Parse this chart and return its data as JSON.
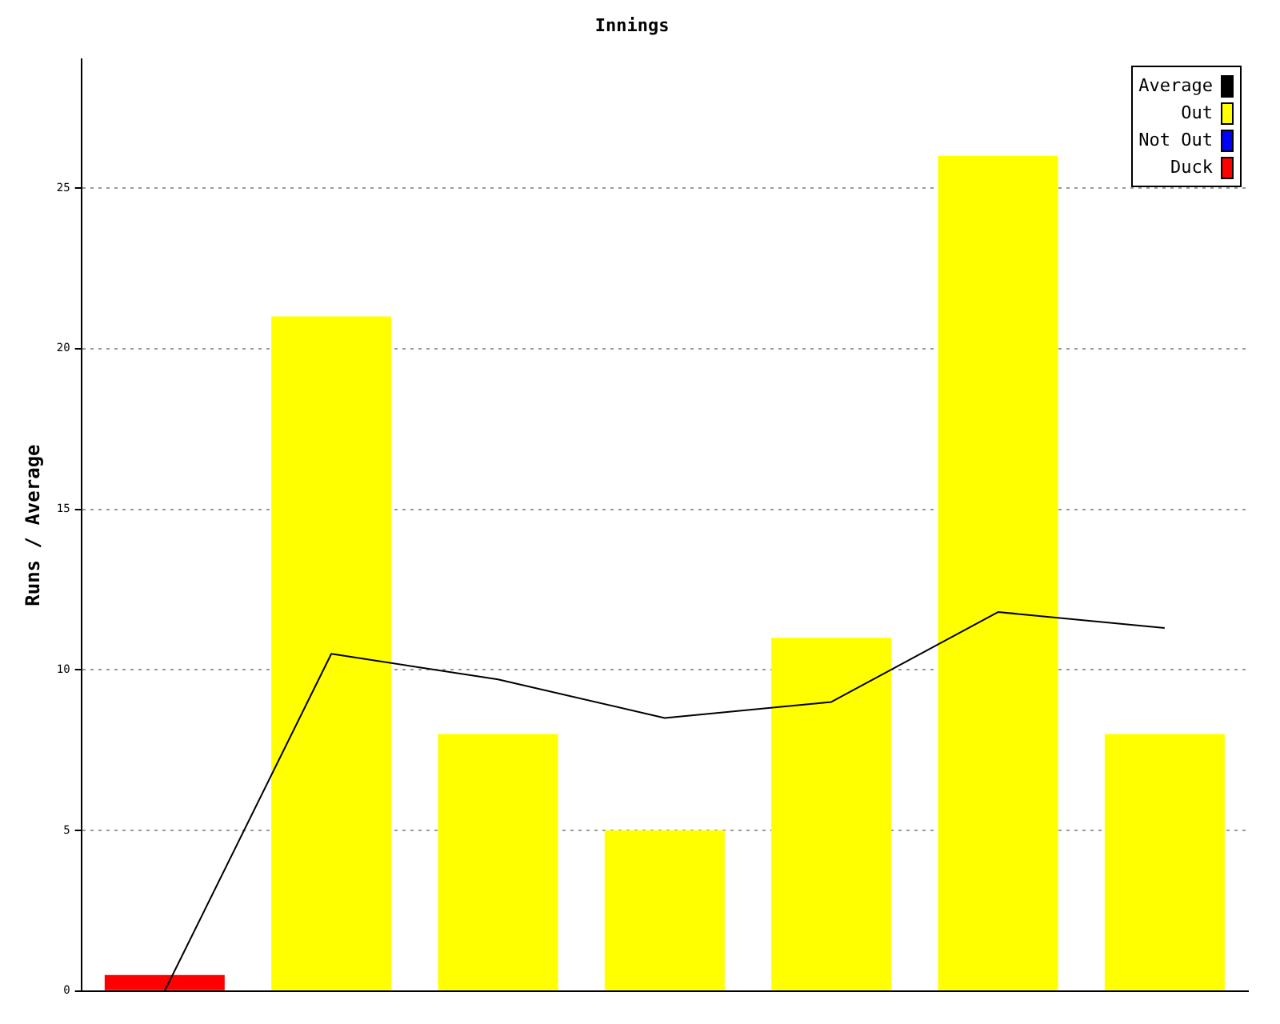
{
  "chart_data": {
    "type": "bar",
    "title": "Innings",
    "ylabel": "Runs / Average",
    "categories": [
      null,
      null,
      null,
      null,
      null,
      null,
      null
    ],
    "series": [
      {
        "name": "Average",
        "type": "line",
        "color": "#000000",
        "values": [
          0,
          10.5,
          9.7,
          8.5,
          9,
          11.8,
          11.3
        ]
      },
      {
        "name": "Out",
        "color": "#ffff00",
        "values": [
          null,
          21,
          8,
          5,
          11,
          26,
          8
        ]
      },
      {
        "name": "Not Out",
        "color": "#0000ff",
        "values": [
          null,
          null,
          null,
          null,
          null,
          null,
          null
        ]
      },
      {
        "name": "Duck",
        "color": "#ff0000",
        "values": [
          0.5,
          null,
          null,
          null,
          null,
          null,
          null
        ]
      }
    ],
    "ylim": [
      0,
      29
    ],
    "yticks": [
      0,
      5,
      10,
      15,
      20,
      25
    ],
    "grid": "y",
    "legend": "top right",
    "marker": "none"
  }
}
